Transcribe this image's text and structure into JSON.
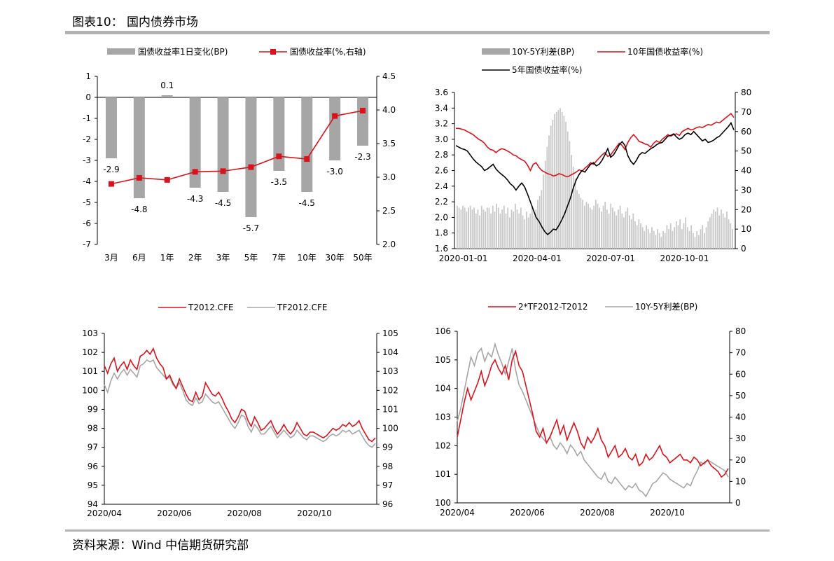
{
  "figure": {
    "title": "图表10： 国内债券市场",
    "source": "资料来源：Wind 中信期货研究部"
  },
  "colors": {
    "gray": "#a6a6a6",
    "red": "#d9131b",
    "black": "#000000",
    "lightgray": "#c9c9c9",
    "rule": "#b3b3b3"
  },
  "chart_data": [
    {
      "type": "bar",
      "title": "",
      "categories": [
        "3月",
        "6月",
        "1年",
        "2年",
        "3年",
        "5年",
        "7年",
        "10年",
        "30年",
        "50年"
      ],
      "series": [
        {
          "name": "国债收益率1日变化(BP)",
          "kind": "bar",
          "axis": "left",
          "values": [
            -2.9,
            -4.8,
            0.1,
            -4.3,
            -4.5,
            -5.7,
            -3.5,
            -4.5,
            -3.0,
            -2.3
          ],
          "labels": [
            "-2.9",
            "-4.8",
            "0.1",
            "-4.3",
            "-4.5",
            "-5.7",
            "-3.5",
            "-4.5",
            "-3.0",
            "-2.3"
          ]
        },
        {
          "name": "国债收益率(%,右轴)",
          "kind": "line",
          "axis": "right",
          "values": [
            2.9,
            2.99,
            2.96,
            3.08,
            3.09,
            3.15,
            3.31,
            3.27,
            3.91,
            3.99
          ]
        }
      ],
      "left_axis": {
        "min": -7,
        "max": 1,
        "ticks": [
          "1",
          "0",
          "-1",
          "-2",
          "-3",
          "-4",
          "-5",
          "-6",
          "-7"
        ]
      },
      "right_axis": {
        "min": 2.0,
        "max": 4.5,
        "ticks": [
          "4.5",
          "4.0",
          "3.5",
          "3.0",
          "2.5",
          "2.0"
        ]
      }
    },
    {
      "type": "line",
      "title": "",
      "x_ticks": [
        "2020-01-01",
        "2020-04-01",
        "2020-07-01",
        "2020-10-01"
      ],
      "series": [
        {
          "name": "10Y-5Y利差(BP)",
          "kind": "bar",
          "axis": "right",
          "values": [
            22,
            21,
            20,
            22,
            21,
            19,
            21,
            22,
            20,
            21,
            18,
            20,
            17,
            22,
            20,
            19,
            21,
            21,
            18,
            22,
            19,
            23,
            21,
            18,
            20,
            22,
            18,
            21,
            16,
            20,
            19,
            23,
            20,
            18,
            21,
            17,
            15,
            19,
            16,
            18,
            22,
            17,
            20,
            25,
            27,
            30,
            38,
            45,
            52,
            58,
            63,
            66,
            69,
            70,
            71,
            72,
            70,
            68,
            65,
            60,
            55,
            48,
            42,
            36,
            30,
            28,
            26,
            25,
            22,
            24,
            23,
            21,
            20,
            22,
            25,
            23,
            21,
            19,
            22,
            24,
            20,
            18,
            23,
            21,
            19,
            17,
            20,
            22,
            18,
            16,
            19,
            21,
            17,
            15,
            18,
            14,
            12,
            15,
            13,
            11,
            9,
            12,
            10,
            8,
            11,
            9,
            7,
            10,
            8,
            6,
            9,
            8,
            12,
            10,
            13,
            9,
            11,
            14,
            12,
            15,
            10,
            13,
            16,
            11,
            9,
            12,
            8,
            6,
            9,
            7,
            10,
            12,
            8,
            11,
            14,
            16,
            18,
            20,
            19,
            21,
            17,
            20,
            18,
            16,
            19,
            15,
            13,
            10
          ]
        },
        {
          "name": "10年国债收益率(%)",
          "kind": "line",
          "axis": "left",
          "color": "red",
          "values": [
            3.14,
            3.14,
            3.13,
            3.12,
            3.1,
            3.08,
            3.06,
            3.03,
            3.0,
            2.98,
            2.95,
            2.9,
            2.87,
            2.86,
            2.83,
            2.86,
            2.88,
            2.87,
            2.85,
            2.83,
            2.8,
            2.79,
            2.76,
            2.74,
            2.72,
            2.67,
            2.6,
            2.68,
            2.7,
            2.64,
            2.6,
            2.58,
            2.56,
            2.55,
            2.53,
            2.54,
            2.56,
            2.55,
            2.53,
            2.52,
            2.54,
            2.56,
            2.58,
            2.61,
            2.59,
            2.63,
            2.66,
            2.7,
            2.68,
            2.72,
            2.76,
            2.8,
            2.83,
            2.78,
            2.8,
            2.85,
            2.9,
            2.95,
            2.92,
            2.87,
            2.96,
            3.02,
            3.06,
            3.02,
            2.97,
            2.96,
            2.94,
            2.93,
            2.9,
            2.95,
            2.98,
            2.96,
            3.0,
            3.03,
            3.06,
            3.04,
            3.06,
            3.07,
            3.05,
            3.1,
            3.12,
            3.14,
            3.12,
            3.13,
            3.15,
            3.16,
            3.15,
            3.17,
            3.19,
            3.18,
            3.2,
            3.22,
            3.21,
            3.24,
            3.27,
            3.3,
            3.33,
            3.28
          ]
        },
        {
          "name": "5年国债收益率(%)",
          "kind": "line",
          "axis": "left",
          "color": "black",
          "values": [
            2.92,
            2.9,
            2.88,
            2.87,
            2.85,
            2.8,
            2.75,
            2.71,
            2.68,
            2.65,
            2.6,
            2.62,
            2.65,
            2.68,
            2.62,
            2.58,
            2.55,
            2.52,
            2.48,
            2.43,
            2.4,
            2.35,
            2.4,
            2.44,
            2.39,
            2.3,
            2.2,
            2.1,
            2.0,
            1.95,
            1.88,
            1.82,
            1.78,
            1.81,
            1.85,
            1.84,
            1.9,
            1.97,
            2.05,
            2.15,
            2.25,
            2.38,
            2.48,
            2.55,
            2.6,
            2.58,
            2.63,
            2.68,
            2.7,
            2.66,
            2.68,
            2.73,
            2.8,
            2.88,
            2.77,
            2.8,
            2.86,
            2.93,
            2.97,
            2.92,
            2.79,
            2.72,
            2.68,
            2.73,
            2.8,
            2.83,
            2.82,
            2.85,
            2.88,
            2.9,
            2.93,
            2.95,
            2.96,
            3.0,
            3.04,
            3.05,
            3.07,
            3.03,
            3.0,
            3.02,
            3.06,
            3.08,
            3.06,
            3.1,
            3.06,
            3.02,
            2.98,
            3.0,
            2.96,
            2.97,
            2.99,
            3.02,
            3.04,
            3.08,
            3.12,
            3.16,
            3.21,
            3.12
          ]
        }
      ],
      "left_axis": {
        "min": 1.6,
        "max": 3.6,
        "ticks": [
          "3.6",
          "3.4",
          "3.2",
          "3.0",
          "2.8",
          "2.6",
          "2.4",
          "2.2",
          "2.0",
          "1.8",
          "1.6"
        ]
      },
      "right_axis": {
        "min": 0,
        "max": 80,
        "ticks": [
          "80",
          "70",
          "60",
          "50",
          "40",
          "30",
          "20",
          "10",
          "0"
        ]
      }
    },
    {
      "type": "line",
      "title": "",
      "x_ticks": [
        "2020/04",
        "2020/06",
        "2020/08",
        "2020/10"
      ],
      "series": [
        {
          "name": "T2012.CFE",
          "kind": "line",
          "axis": "left",
          "color": "red",
          "values": [
            101.3,
            100.9,
            101.4,
            101.7,
            101.0,
            101.3,
            101.5,
            101.1,
            101.6,
            101.3,
            101.1,
            101.8,
            101.9,
            102.1,
            101.9,
            102.2,
            101.7,
            101.4,
            101.2,
            100.6,
            100.8,
            100.4,
            100.1,
            100.6,
            100.2,
            99.8,
            99.5,
            99.4,
            99.9,
            99.5,
            99.7,
            100.4,
            100.1,
            99.8,
            99.7,
            99.9,
            99.6,
            99.2,
            98.9,
            98.5,
            98.3,
            98.6,
            99.0,
            98.9,
            98.4,
            98.1,
            98.6,
            98.3,
            97.9,
            98.0,
            98.2,
            98.4,
            98.0,
            97.7,
            97.9,
            98.2,
            97.9,
            97.7,
            97.9,
            98.3,
            98.0,
            97.7,
            97.6,
            97.8,
            97.8,
            97.7,
            97.6,
            97.5,
            97.6,
            97.8,
            98.0,
            97.9,
            98.0,
            98.2,
            98.1,
            98.3,
            98.1,
            98.2,
            98.4,
            98.0,
            97.7,
            97.4,
            97.3,
            97.5
          ]
        },
        {
          "name": "TF2012.CFE",
          "kind": "line",
          "axis": "right",
          "color": "gray",
          "values": [
            102.3,
            101.9,
            102.5,
            102.9,
            102.6,
            102.9,
            103.1,
            102.8,
            103.1,
            102.9,
            102.7,
            103.3,
            103.4,
            103.6,
            103.5,
            103.6,
            103.2,
            103.0,
            102.8,
            102.6,
            102.7,
            102.3,
            102.1,
            102.4,
            102.0,
            101.5,
            101.3,
            101.2,
            101.6,
            101.3,
            101.4,
            101.8,
            101.6,
            101.4,
            101.3,
            101.4,
            101.1,
            100.8,
            100.5,
            100.2,
            100.0,
            100.3,
            100.7,
            100.6,
            100.1,
            99.8,
            100.2,
            100.0,
            99.7,
            99.7,
            99.9,
            100.1,
            99.8,
            99.5,
            99.7,
            99.9,
            99.7,
            99.5,
            99.6,
            99.9,
            99.7,
            99.5,
            99.4,
            99.6,
            99.6,
            99.5,
            99.4,
            99.3,
            99.4,
            99.6,
            99.7,
            99.6,
            99.7,
            99.9,
            99.8,
            99.9,
            99.7,
            99.8,
            99.9,
            99.6,
            99.3,
            99.1,
            99.0,
            99.2
          ]
        }
      ],
      "left_axis": {
        "min": 94,
        "max": 103,
        "ticks": [
          "103",
          "102",
          "101",
          "100",
          "99",
          "98",
          "97",
          "96",
          "95",
          "94"
        ]
      },
      "right_axis": {
        "min": 96,
        "max": 105,
        "ticks": [
          "105",
          "104",
          "103",
          "102",
          "101",
          "100",
          "99",
          "98",
          "97",
          "96"
        ]
      }
    },
    {
      "type": "line",
      "title": "",
      "x_ticks": [
        "2020/04",
        "2020/06",
        "2020/08",
        "2020/10"
      ],
      "series": [
        {
          "name": "2*TF2012-T2012",
          "kind": "line",
          "axis": "left",
          "color": "red",
          "values": [
            102.3,
            102.9,
            103.5,
            104.0,
            103.6,
            103.9,
            104.2,
            104.6,
            104.1,
            104.4,
            104.8,
            105.0,
            104.7,
            104.5,
            104.8,
            104.3,
            105.0,
            105.3,
            104.8,
            104.6,
            104.1,
            103.6,
            103.1,
            102.5,
            102.3,
            102.6,
            102.1,
            102.3,
            102.6,
            102.9,
            102.4,
            102.7,
            102.2,
            102.5,
            102.8,
            102.5,
            102.1,
            101.9,
            102.3,
            102.1,
            102.3,
            102.6,
            102.2,
            102.0,
            101.6,
            101.8,
            102.0,
            101.6,
            101.7,
            101.9,
            101.6,
            101.5,
            101.7,
            101.3,
            101.4,
            101.7,
            101.5,
            101.6,
            101.8,
            102.0,
            101.7,
            101.6,
            101.4,
            101.5,
            101.6,
            101.7,
            101.5,
            101.5,
            101.4,
            101.6,
            101.5,
            101.3,
            101.4,
            101.5,
            101.3,
            101.2,
            101.1,
            100.9,
            101.0,
            101.2
          ]
        },
        {
          "name": "10Y-5Y利差(BP)",
          "kind": "line",
          "axis": "right",
          "color": "gray",
          "values": [
            38,
            44,
            52,
            60,
            68,
            64,
            70,
            72,
            66,
            70,
            68,
            74,
            69,
            65,
            60,
            66,
            72,
            62,
            55,
            52,
            48,
            44,
            40,
            36,
            32,
            30,
            28,
            31,
            27,
            25,
            28,
            26,
            23,
            27,
            25,
            22,
            24,
            20,
            18,
            16,
            14,
            12,
            11,
            14,
            10,
            9,
            12,
            10,
            8,
            6,
            8,
            7,
            9,
            6,
            5,
            3,
            6,
            9,
            10,
            12,
            14,
            13,
            11,
            10,
            9,
            8,
            7,
            9,
            8,
            12,
            15,
            19,
            18,
            20,
            19,
            18,
            17,
            16,
            15,
            12
          ]
        }
      ],
      "left_axis": {
        "min": 100,
        "max": 106,
        "ticks": [
          "106",
          "105",
          "104",
          "103",
          "102",
          "101",
          "100"
        ]
      },
      "right_axis": {
        "min": 0,
        "max": 80,
        "ticks": [
          "80",
          "70",
          "60",
          "50",
          "40",
          "30",
          "20",
          "10",
          "0"
        ]
      }
    }
  ]
}
